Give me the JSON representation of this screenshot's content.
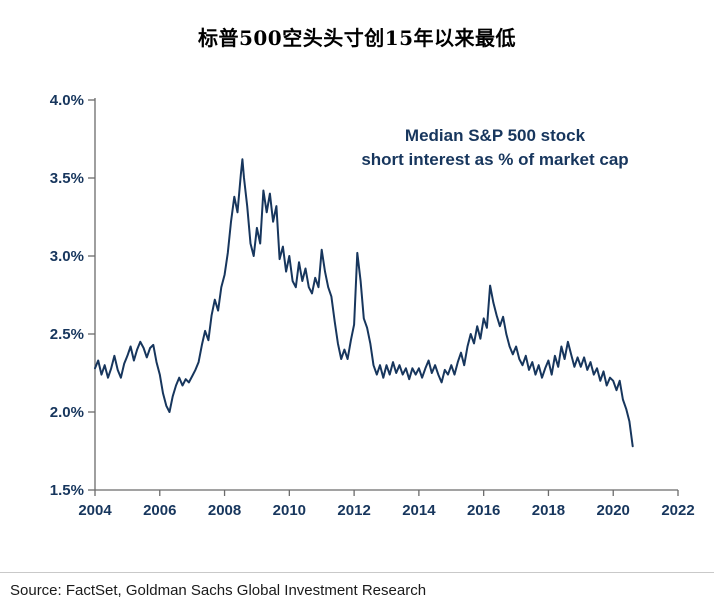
{
  "title": "标普500空头头寸创15年以来最低",
  "source": "Source: FactSet, Goldman Sachs Global Investment Research",
  "colors": {
    "line": "#17365d",
    "tick_label": "#17365d",
    "axis": "#6b6b6b",
    "annotation": "#17365d"
  },
  "chart_data": {
    "type": "line",
    "title": "标普500空头头寸创15年以来最低",
    "annotation_lines": [
      "Median S&P 500 stock",
      "short interest as % of market cap"
    ],
    "xlabel": "",
    "ylabel": "",
    "xlim": [
      2004,
      2022
    ],
    "ylim": [
      1.5,
      4.0
    ],
    "grid": false,
    "legend": "none",
    "x_tick_values": [
      2004,
      2006,
      2008,
      2010,
      2012,
      2014,
      2016,
      2018,
      2020,
      2022
    ],
    "x_tick_labels": [
      "2004",
      "2006",
      "2008",
      "2010",
      "2012",
      "2014",
      "2016",
      "2018",
      "2020",
      "2022"
    ],
    "y_tick_values": [
      4.0,
      3.5,
      3.0,
      2.5,
      2.0,
      1.5
    ],
    "y_tick_labels": [
      "4.0%",
      "3.5%",
      "3.0%",
      "2.5%",
      "2.0%",
      "1.5%"
    ],
    "series": [
      {
        "name": "Median S&P 500 stock short interest as % of market cap",
        "units": "percent",
        "points": [
          [
            2004.0,
            2.28
          ],
          [
            2004.1,
            2.33
          ],
          [
            2004.2,
            2.24
          ],
          [
            2004.3,
            2.3
          ],
          [
            2004.4,
            2.22
          ],
          [
            2004.5,
            2.28
          ],
          [
            2004.6,
            2.36
          ],
          [
            2004.7,
            2.27
          ],
          [
            2004.8,
            2.22
          ],
          [
            2004.9,
            2.31
          ],
          [
            2005.0,
            2.36
          ],
          [
            2005.1,
            2.42
          ],
          [
            2005.2,
            2.33
          ],
          [
            2005.3,
            2.4
          ],
          [
            2005.4,
            2.45
          ],
          [
            2005.5,
            2.41
          ],
          [
            2005.6,
            2.35
          ],
          [
            2005.7,
            2.41
          ],
          [
            2005.8,
            2.43
          ],
          [
            2005.9,
            2.32
          ],
          [
            2006.0,
            2.24
          ],
          [
            2006.1,
            2.12
          ],
          [
            2006.2,
            2.04
          ],
          [
            2006.3,
            2.0
          ],
          [
            2006.4,
            2.1
          ],
          [
            2006.5,
            2.17
          ],
          [
            2006.6,
            2.22
          ],
          [
            2006.7,
            2.17
          ],
          [
            2006.8,
            2.21
          ],
          [
            2006.9,
            2.19
          ],
          [
            2007.0,
            2.23
          ],
          [
            2007.1,
            2.27
          ],
          [
            2007.2,
            2.32
          ],
          [
            2007.3,
            2.43
          ],
          [
            2007.4,
            2.52
          ],
          [
            2007.5,
            2.46
          ],
          [
            2007.6,
            2.62
          ],
          [
            2007.7,
            2.72
          ],
          [
            2007.8,
            2.65
          ],
          [
            2007.9,
            2.8
          ],
          [
            2008.0,
            2.88
          ],
          [
            2008.1,
            3.02
          ],
          [
            2008.2,
            3.22
          ],
          [
            2008.3,
            3.38
          ],
          [
            2008.4,
            3.28
          ],
          [
            2008.5,
            3.52
          ],
          [
            2008.55,
            3.62
          ],
          [
            2008.6,
            3.5
          ],
          [
            2008.7,
            3.32
          ],
          [
            2008.8,
            3.08
          ],
          [
            2008.9,
            3.0
          ],
          [
            2009.0,
            3.18
          ],
          [
            2009.1,
            3.08
          ],
          [
            2009.2,
            3.42
          ],
          [
            2009.3,
            3.28
          ],
          [
            2009.4,
            3.4
          ],
          [
            2009.5,
            3.22
          ],
          [
            2009.6,
            3.32
          ],
          [
            2009.7,
            2.98
          ],
          [
            2009.8,
            3.06
          ],
          [
            2009.9,
            2.9
          ],
          [
            2010.0,
            3.0
          ],
          [
            2010.1,
            2.84
          ],
          [
            2010.2,
            2.8
          ],
          [
            2010.3,
            2.96
          ],
          [
            2010.4,
            2.84
          ],
          [
            2010.5,
            2.92
          ],
          [
            2010.6,
            2.8
          ],
          [
            2010.7,
            2.76
          ],
          [
            2010.8,
            2.86
          ],
          [
            2010.9,
            2.8
          ],
          [
            2011.0,
            3.04
          ],
          [
            2011.1,
            2.9
          ],
          [
            2011.2,
            2.8
          ],
          [
            2011.3,
            2.74
          ],
          [
            2011.4,
            2.58
          ],
          [
            2011.5,
            2.44
          ],
          [
            2011.6,
            2.34
          ],
          [
            2011.7,
            2.4
          ],
          [
            2011.8,
            2.34
          ],
          [
            2011.9,
            2.46
          ],
          [
            2012.0,
            2.56
          ],
          [
            2012.1,
            3.02
          ],
          [
            2012.2,
            2.84
          ],
          [
            2012.3,
            2.6
          ],
          [
            2012.4,
            2.54
          ],
          [
            2012.5,
            2.44
          ],
          [
            2012.6,
            2.3
          ],
          [
            2012.7,
            2.24
          ],
          [
            2012.8,
            2.3
          ],
          [
            2012.9,
            2.22
          ],
          [
            2013.0,
            2.3
          ],
          [
            2013.1,
            2.24
          ],
          [
            2013.2,
            2.32
          ],
          [
            2013.3,
            2.25
          ],
          [
            2013.4,
            2.3
          ],
          [
            2013.5,
            2.24
          ],
          [
            2013.6,
            2.28
          ],
          [
            2013.7,
            2.21
          ],
          [
            2013.8,
            2.28
          ],
          [
            2013.9,
            2.24
          ],
          [
            2014.0,
            2.28
          ],
          [
            2014.1,
            2.22
          ],
          [
            2014.2,
            2.28
          ],
          [
            2014.3,
            2.33
          ],
          [
            2014.4,
            2.25
          ],
          [
            2014.5,
            2.3
          ],
          [
            2014.6,
            2.24
          ],
          [
            2014.7,
            2.19
          ],
          [
            2014.8,
            2.27
          ],
          [
            2014.9,
            2.24
          ],
          [
            2015.0,
            2.3
          ],
          [
            2015.1,
            2.24
          ],
          [
            2015.2,
            2.32
          ],
          [
            2015.3,
            2.38
          ],
          [
            2015.4,
            2.3
          ],
          [
            2015.5,
            2.42
          ],
          [
            2015.6,
            2.5
          ],
          [
            2015.7,
            2.44
          ],
          [
            2015.8,
            2.55
          ],
          [
            2015.9,
            2.47
          ],
          [
            2016.0,
            2.6
          ],
          [
            2016.1,
            2.54
          ],
          [
            2016.2,
            2.81
          ],
          [
            2016.3,
            2.7
          ],
          [
            2016.4,
            2.62
          ],
          [
            2016.5,
            2.55
          ],
          [
            2016.6,
            2.61
          ],
          [
            2016.7,
            2.5
          ],
          [
            2016.8,
            2.42
          ],
          [
            2016.9,
            2.37
          ],
          [
            2017.0,
            2.42
          ],
          [
            2017.1,
            2.34
          ],
          [
            2017.2,
            2.3
          ],
          [
            2017.3,
            2.36
          ],
          [
            2017.4,
            2.27
          ],
          [
            2017.5,
            2.32
          ],
          [
            2017.6,
            2.24
          ],
          [
            2017.7,
            2.3
          ],
          [
            2017.8,
            2.22
          ],
          [
            2017.9,
            2.28
          ],
          [
            2018.0,
            2.33
          ],
          [
            2018.1,
            2.24
          ],
          [
            2018.2,
            2.36
          ],
          [
            2018.3,
            2.29
          ],
          [
            2018.4,
            2.42
          ],
          [
            2018.5,
            2.34
          ],
          [
            2018.6,
            2.45
          ],
          [
            2018.7,
            2.37
          ],
          [
            2018.8,
            2.29
          ],
          [
            2018.9,
            2.35
          ],
          [
            2019.0,
            2.29
          ],
          [
            2019.1,
            2.35
          ],
          [
            2019.2,
            2.27
          ],
          [
            2019.3,
            2.32
          ],
          [
            2019.4,
            2.24
          ],
          [
            2019.5,
            2.28
          ],
          [
            2019.6,
            2.2
          ],
          [
            2019.7,
            2.26
          ],
          [
            2019.8,
            2.17
          ],
          [
            2019.9,
            2.22
          ],
          [
            2020.0,
            2.2
          ],
          [
            2020.1,
            2.14
          ],
          [
            2020.2,
            2.2
          ],
          [
            2020.3,
            2.08
          ],
          [
            2020.4,
            2.02
          ],
          [
            2020.5,
            1.94
          ],
          [
            2020.6,
            1.78
          ]
        ]
      }
    ]
  }
}
